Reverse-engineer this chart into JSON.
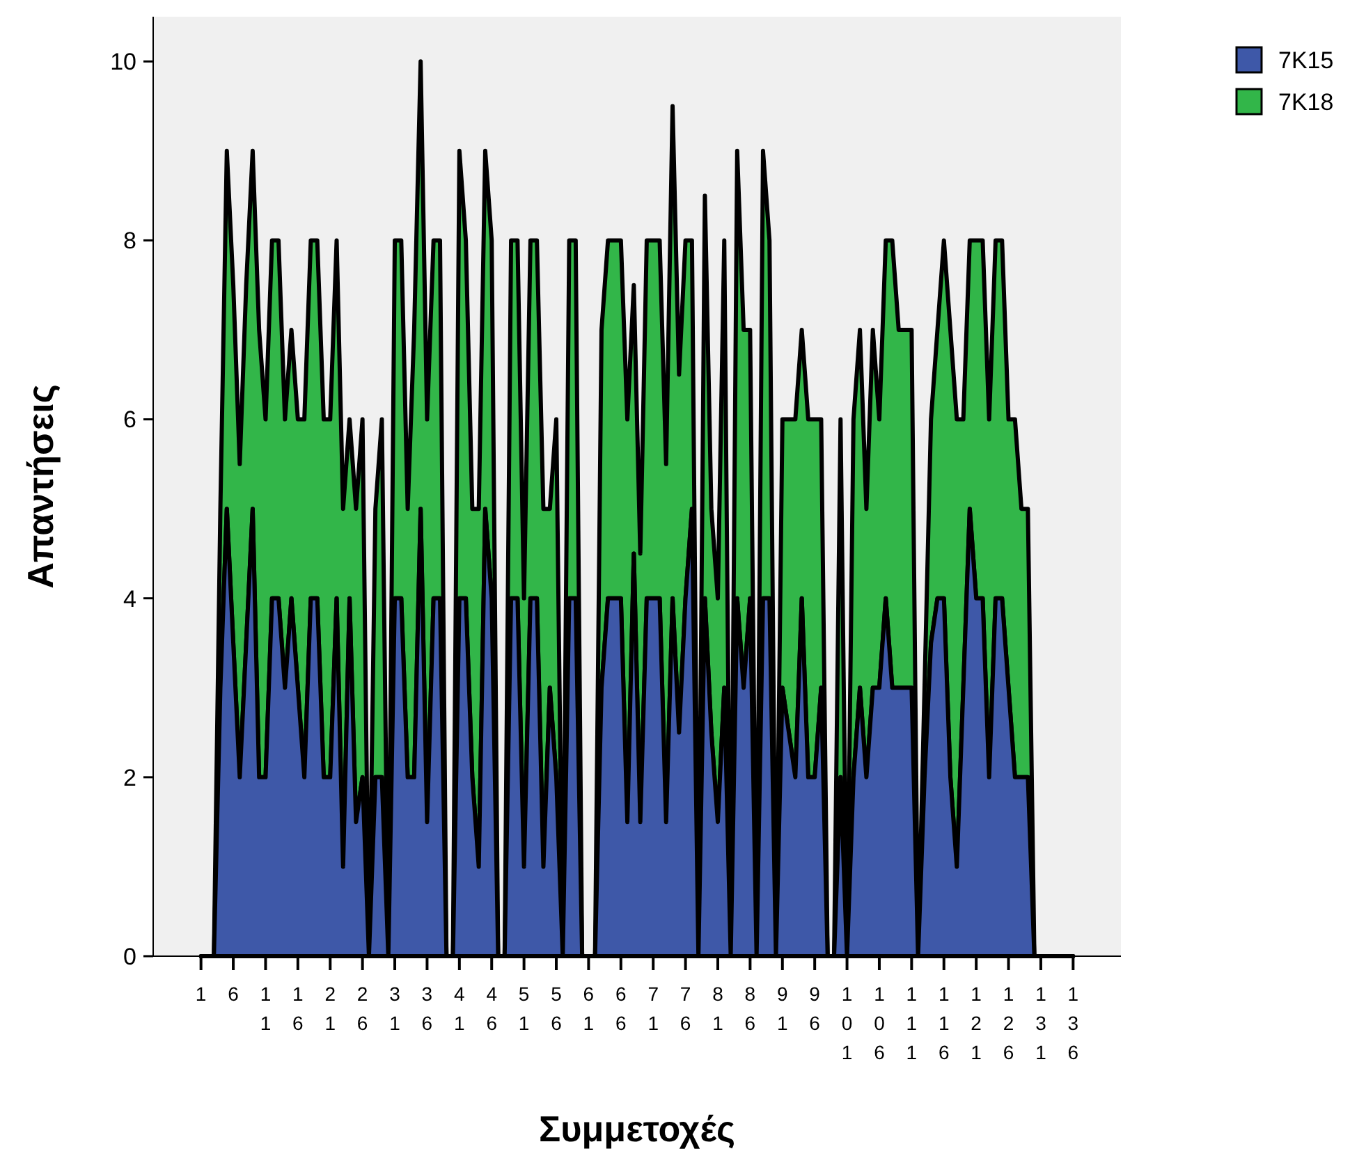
{
  "chart_data": {
    "type": "area",
    "stacked": true,
    "xlabel": "Συμμετοχές",
    "ylabel": "Απαντήσεις",
    "categories": [
      "1",
      null,
      null,
      null,
      null,
      "6",
      null,
      null,
      null,
      null,
      "11",
      null,
      null,
      null,
      null,
      "16",
      null,
      null,
      null,
      null,
      "21",
      null,
      null,
      null,
      null,
      "26",
      null,
      null,
      null,
      null,
      "31",
      null,
      null,
      null,
      null,
      "36",
      null,
      null,
      null,
      null,
      "41",
      null,
      null,
      null,
      null,
      "46",
      null,
      null,
      null,
      null,
      "51",
      null,
      null,
      null,
      null,
      "56",
      null,
      null,
      null,
      null,
      "61",
      null,
      null,
      null,
      null,
      "66",
      null,
      null,
      null,
      null,
      "71",
      null,
      null,
      null,
      null,
      "76",
      null,
      null,
      null,
      null,
      "81",
      null,
      null,
      null,
      null,
      "86",
      null,
      null,
      null,
      null,
      "91",
      null,
      null,
      null,
      null,
      "96",
      null,
      null,
      null,
      null,
      "101",
      null,
      null,
      null,
      null,
      "106",
      null,
      null,
      null,
      null,
      "111",
      null,
      null,
      null,
      null,
      "116",
      null,
      null,
      null,
      null,
      "121",
      null,
      null,
      null,
      null,
      "126",
      null,
      null,
      null,
      null,
      "131",
      null,
      null,
      null,
      null,
      "136"
    ],
    "series": [
      {
        "name": "7K15",
        "color": "#3e58a8",
        "values": [
          0,
          0,
          0,
          3,
          5,
          3.5,
          2,
          3.5,
          5,
          2,
          2,
          4,
          4,
          3,
          4,
          3,
          2,
          4,
          4,
          2,
          2,
          4,
          1,
          4,
          1.5,
          2,
          0,
          2,
          2,
          0,
          4,
          4,
          2,
          2,
          5,
          1.5,
          4,
          4,
          0,
          0,
          4,
          4,
          2,
          1,
          5,
          4,
          0,
          0,
          4,
          4,
          1,
          4,
          4,
          1,
          3,
          2,
          0,
          4,
          4,
          0,
          0,
          0,
          3,
          4,
          4,
          4,
          1.5,
          4.5,
          1.5,
          4,
          4,
          4,
          1.5,
          4,
          2.5,
          4,
          5,
          0,
          4,
          2.5,
          1.5,
          3,
          0,
          4,
          3,
          4,
          0,
          4,
          4,
          0,
          3,
          2.5,
          2,
          4,
          2,
          2,
          3,
          0,
          0,
          2,
          0,
          2,
          3,
          2,
          3,
          3,
          4,
          3,
          3,
          3,
          3,
          0,
          2,
          3.5,
          4,
          4,
          2,
          1,
          3,
          5,
          4,
          4,
          2,
          4,
          4,
          3,
          2,
          2,
          2,
          0,
          0,
          0,
          0,
          0,
          0,
          0
        ]
      },
      {
        "name": "7K18",
        "color": "#32b649",
        "values": [
          0,
          0,
          0,
          2,
          4,
          4,
          3.5,
          4,
          4,
          5,
          4,
          4,
          4,
          3,
          3,
          3,
          4,
          4,
          4,
          4,
          4,
          4,
          4,
          2,
          3.5,
          4,
          0,
          3,
          4,
          0,
          4,
          4,
          3,
          5,
          5,
          4.5,
          4,
          4,
          0,
          0,
          5,
          4,
          3,
          4,
          4,
          4,
          0,
          0,
          4,
          4,
          3,
          4,
          4,
          4,
          2,
          4,
          0,
          4,
          4,
          0,
          0,
          0,
          4,
          4,
          4,
          4,
          4.5,
          3,
          3,
          4,
          4,
          4,
          4,
          5.5,
          4,
          4,
          3,
          0,
          4.5,
          2.5,
          2.5,
          5,
          0,
          5,
          4,
          3,
          0,
          5,
          4,
          0,
          3,
          3.5,
          4,
          3,
          4,
          4,
          3,
          0,
          0,
          4,
          0,
          4,
          4,
          3,
          4,
          3,
          4,
          5,
          4,
          4,
          4,
          0,
          1,
          2.5,
          3,
          4,
          5,
          5,
          3,
          3,
          4,
          4,
          4,
          4,
          4,
          3,
          4,
          3,
          3,
          0,
          0,
          0,
          0,
          0,
          0,
          0
        ]
      }
    ],
    "ylim": [
      0,
      10.5
    ],
    "yticks": [
      0,
      2,
      4,
      6,
      8,
      10
    ],
    "legend": "top right"
  }
}
